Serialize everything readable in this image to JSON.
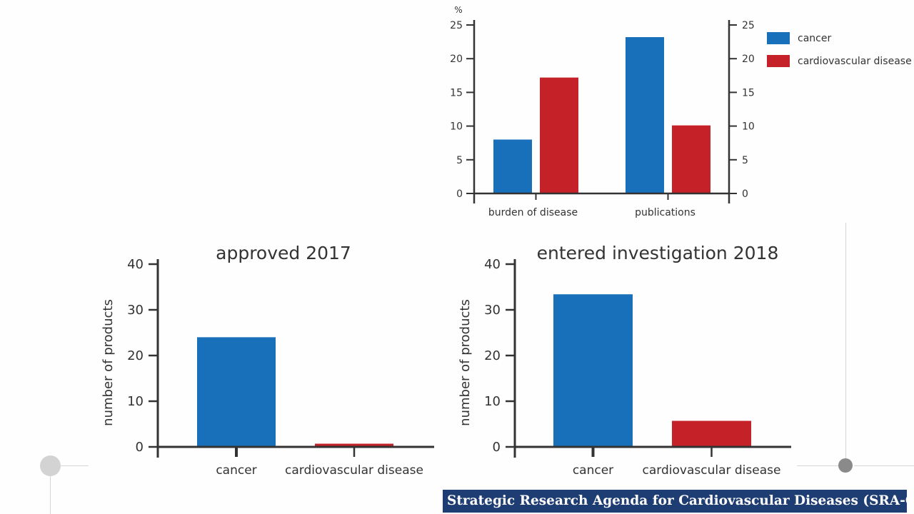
{
  "colors": {
    "cancer": "#1770b9",
    "cardiovascular": "#c42128",
    "axis": "#333333",
    "banner_bg": "#1e3d72",
    "banner_text": "#ffffff",
    "deco_circle_light": "#d3d3d3",
    "deco_circle_dark": "#8a8a8a"
  },
  "footer": {
    "text": "Strategic Research Agenda for Cardiovascular Diseases (SRA-CVD)"
  },
  "chart_data": [
    {
      "type": "bar",
      "title": "",
      "ylabel": "%",
      "xlabel": "",
      "categories": [
        "burden of disease",
        "publications"
      ],
      "series": [
        {
          "name": "cancer",
          "values": [
            8,
            23.2
          ]
        },
        {
          "name": "cardiovascular disease",
          "values": [
            17.2,
            10.1
          ]
        }
      ],
      "ylim": [
        0,
        25
      ],
      "yticks": [
        0,
        5,
        10,
        15,
        20,
        25
      ],
      "right_axis": true,
      "grid": false,
      "legend": "top-right"
    },
    {
      "type": "bar",
      "title": "approved 2017",
      "ylabel": "number of products",
      "xlabel": "",
      "categories": [
        "cancer",
        "cardiovascular disease"
      ],
      "series": [
        {
          "values": [
            24,
            0.7
          ]
        }
      ],
      "ylim": [
        0,
        40
      ],
      "yticks": [
        0,
        10,
        20,
        30,
        40
      ],
      "grid": false
    },
    {
      "type": "bar",
      "title": "entered investigation 2018",
      "ylabel": "number of products",
      "xlabel": "",
      "categories": [
        "cancer",
        "cardiovascular disease"
      ],
      "series": [
        {
          "values": [
            33.4,
            5.7
          ]
        }
      ],
      "ylim": [
        0,
        40
      ],
      "yticks": [
        0,
        10,
        20,
        30,
        40
      ],
      "grid": false
    }
  ]
}
